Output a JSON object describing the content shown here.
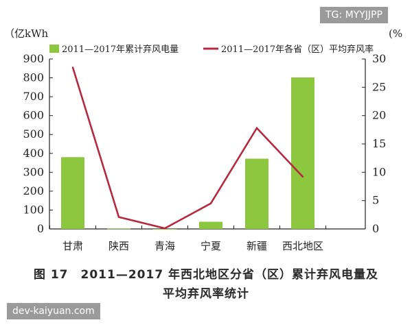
{
  "chart_data": {
    "type": "bar",
    "categories": [
      "甘肃",
      "陕西",
      "青海",
      "宁夏",
      "新疆",
      "西北地区"
    ],
    "series": [
      {
        "name": "2011—2017年累计弃风电量",
        "type": "bar",
        "axis": "left",
        "color": "#8dc63f",
        "values": [
          380,
          2,
          0,
          38,
          372,
          802
        ]
      },
      {
        "name": "2011—2017年各省（区）平均弃风率",
        "type": "line",
        "axis": "right",
        "color": "#b5283f",
        "values": [
          28.5,
          2.1,
          0.1,
          4.5,
          17.8,
          9.2
        ]
      }
    ],
    "y_left": {
      "unit_label": "（亿kWh",
      "ylim": [
        0,
        900
      ],
      "ticks": [
        "0",
        "100",
        "200",
        "300",
        "400",
        "500",
        "600",
        "700",
        "800",
        "900"
      ]
    },
    "y_right": {
      "unit_label": "(%",
      "ylim": [
        0,
        30
      ],
      "ticks": [
        "0",
        "5",
        "10",
        "15",
        "20",
        "25",
        "30"
      ]
    },
    "grid": false,
    "legend": "top"
  },
  "caption": {
    "line1": "图 17　2011—2017 年西北地区分省（区）累计弃风电量及",
    "line2": "平均弃风率统计"
  },
  "watermarks": {
    "top": "TG: MYYJJPP",
    "bottom": "dev-kaiyuan.com"
  }
}
